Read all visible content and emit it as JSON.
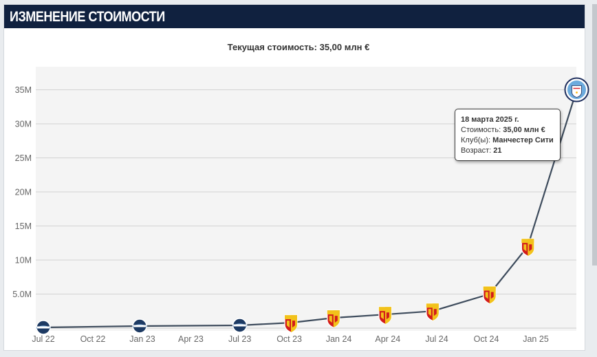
{
  "header": {
    "title": "ИЗМЕНЕНИЕ СТОИМОСТИ"
  },
  "subtitle": "Текущая стоимость: 35,00 млн €",
  "tooltip": {
    "date": "18 марта 2025 г.",
    "value_label": "Стоимость:",
    "value": "35,00 млн €",
    "club_label": "Клуб(ы):",
    "club": "Манчестер Сити",
    "age_label": "Возраст:",
    "age": "21"
  },
  "colors": {
    "header_bg": "#10213f",
    "line": "#3d4b5c",
    "grid": "#d2d2d2",
    "plot_bg": "#f4f4f4",
    "le_havre_crest": "#1d3a63",
    "lens_red": "#d21b1b",
    "lens_yellow": "#f2c21b",
    "man_city_blue": "#6cabdd"
  },
  "chart_data": {
    "type": "line",
    "title": "",
    "xlabel": "",
    "ylabel": "",
    "x_ticks": [
      "Jul 22",
      "Oct 22",
      "Jan 23",
      "Apr 23",
      "Jul 23",
      "Oct 23",
      "Jan 24",
      "Apr 24",
      "Jul 24",
      "Oct 24",
      "Jan 25"
    ],
    "y_ticks": [
      "5.0M",
      "10M",
      "15M",
      "20M",
      "25M",
      "30M",
      "35M"
    ],
    "ylim": [
      0,
      37
    ],
    "grid": true,
    "series": [
      {
        "points": [
          {
            "x": "2022-07-01",
            "y": 0.1,
            "club_icon": "le-havre-crest-icon"
          },
          {
            "x": "2022-12-27",
            "y": 0.3,
            "club_icon": "le-havre-crest-icon"
          },
          {
            "x": "2023-07-01",
            "y": 0.4,
            "club_icon": "le-havre-crest-icon"
          },
          {
            "x": "2023-10-04",
            "y": 0.8,
            "club_icon": "rc-lens-crest-icon"
          },
          {
            "x": "2023-12-22",
            "y": 1.5,
            "club_icon": "rc-lens-crest-icon"
          },
          {
            "x": "2024-03-27",
            "y": 2.0,
            "club_icon": "rc-lens-crest-icon"
          },
          {
            "x": "2024-06-23",
            "y": 2.5,
            "club_icon": "rc-lens-crest-icon"
          },
          {
            "x": "2024-10-07",
            "y": 5.0,
            "club_icon": "rc-lens-crest-icon"
          },
          {
            "x": "2024-12-17",
            "y": 12.0,
            "club_icon": "rc-lens-crest-icon"
          },
          {
            "x": "2025-03-18",
            "y": 35.0,
            "club_icon": "manchester-city-crest-icon"
          }
        ]
      }
    ]
  }
}
